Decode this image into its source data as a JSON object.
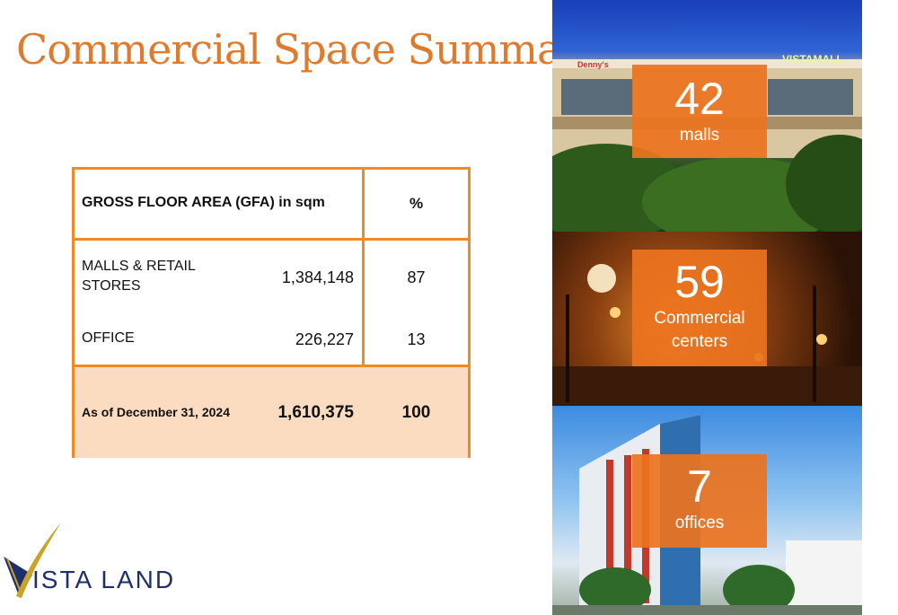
{
  "title": "Commercial Space Summary",
  "table": {
    "header": {
      "label": "GROSS FLOOR AREA (GFA) in sqm",
      "pct": "%"
    },
    "rows": [
      {
        "label": "MALLS & RETAIL STORES",
        "value": "1,384,148",
        "pct": "87"
      },
      {
        "label": "OFFICE",
        "value": "226,227",
        "pct": "13"
      }
    ],
    "footer": {
      "label": "As of December 31, 2024",
      "value": "1,610,375",
      "pct": "100"
    }
  },
  "stats": [
    {
      "number": "42",
      "label": "malls"
    },
    {
      "number": "59",
      "label": "Commercial centers"
    },
    {
      "number": "7",
      "label": "offices"
    }
  ],
  "photo_signs": {
    "dennys": "Denny's",
    "vistamall": "VISTAMALL"
  },
  "logo": {
    "text": "ISTA LAND",
    "brand": "VISTA LAND"
  },
  "colors": {
    "accent": "#f08a24",
    "title": "#e07b2e",
    "highlight": "#fbdcc0",
    "logo_blue": "#1f2f6b",
    "logo_gold": "#c9a227"
  }
}
